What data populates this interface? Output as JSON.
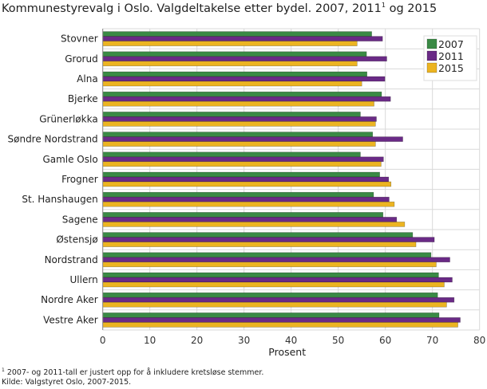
{
  "chart_data": {
    "type": "bar",
    "orientation": "horizontal",
    "title": "Kommunestyrevalg i Oslo. Valgdeltakelse etter bydel. 2007, 2011",
    "title_sup": "1",
    "title_end": " og 2015",
    "xlabel": "Prosent",
    "ylabel": "",
    "xlim": [
      0,
      80
    ],
    "xticks": [
      0,
      10,
      20,
      30,
      40,
      50,
      60,
      70,
      80
    ],
    "grid": true,
    "legend_position": "top-right",
    "categories": [
      "Stovner",
      "Grorud",
      "Alna",
      "Bjerke",
      "Grünerløkka",
      "Søndre Nordstrand",
      "Gamle Oslo",
      "Frogner",
      "St. Hanshaugen",
      "Sagene",
      "Østensjø",
      "Nordstrand",
      "Ullern",
      "Nordre Aker",
      "Vestre Aker"
    ],
    "series": [
      {
        "name": "2007",
        "color": "#3a8a45",
        "values": [
          57.1,
          56.0,
          56.1,
          59.2,
          54.7,
          57.3,
          54.7,
          58.8,
          57.5,
          59.5,
          65.8,
          69.7,
          71.3,
          71.1,
          71.4
        ]
      },
      {
        "name": "2011",
        "color": "#6a2a86",
        "values": [
          59.4,
          60.3,
          59.9,
          61.1,
          58.1,
          63.7,
          59.6,
          60.7,
          60.8,
          62.4,
          70.4,
          73.7,
          74.2,
          74.6,
          75.9
        ]
      },
      {
        "name": "2015",
        "color": "#ecb421",
        "values": [
          54.0,
          54.0,
          55.0,
          57.6,
          57.9,
          57.9,
          59.1,
          61.2,
          61.9,
          64.1,
          66.5,
          70.8,
          72.5,
          73.0,
          75.4
        ]
      }
    ]
  },
  "footnotes": {
    "note_sup": "1",
    "note": " 2007- og 2011-tall er justert opp for å inkludere kretsløse stemmer.",
    "source": "Kilde: Valgstyret Oslo, 2007-2015."
  }
}
